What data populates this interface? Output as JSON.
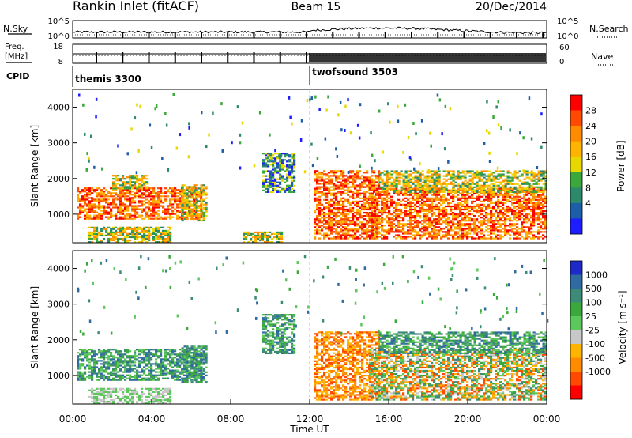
{
  "header": {
    "station": "Rankin Inlet (fitACF)",
    "beam": "Beam 15",
    "date": "20/Dec/2014"
  },
  "strips": {
    "nsky_label": "N.Sky",
    "nsearch_label": "N.Search",
    "nsky_ticks": [
      "10^5",
      "10^0"
    ],
    "nsearch_ticks": [
      "10^5",
      "10^0"
    ],
    "freq_label_line1": "Freq.",
    "freq_label_line2": "[MHz]",
    "freq_ticks": [
      "18",
      "8"
    ],
    "nave_label": "Nave",
    "nave_ticks": [
      "60",
      "0"
    ],
    "cpid_label": "CPID",
    "cpid_segments": [
      {
        "name": "themis 3300",
        "start_hour": 0,
        "end_hour": 12
      },
      {
        "name": "twofsound 3503",
        "start_hour": 12,
        "end_hour": 24
      }
    ]
  },
  "chart_data": [
    {
      "type": "heatmap",
      "title": "",
      "xlabel": "Time UT",
      "ylabel": "Slant Range [km]",
      "xlim": [
        0,
        24
      ],
      "ylim": [
        200,
        4500
      ],
      "x_ticks": [
        "00:00",
        "04:00",
        "08:00",
        "12:00",
        "16:00",
        "20:00",
        "00:00"
      ],
      "y_ticks": [
        "1000",
        "2000",
        "3000",
        "4000"
      ],
      "colorbar": {
        "label": "Power [dB]",
        "ticks": [
          "28",
          "24",
          "20",
          "16",
          "12",
          "8",
          "4"
        ],
        "colors": [
          "#ff0000",
          "#ff4a00",
          "#ff8c00",
          "#ffb400",
          "#e8d800",
          "#3aa83a",
          "#2c8a6a",
          "#1d5ea8",
          "#1d1dff"
        ]
      },
      "regions": [
        {
          "t0": 0.2,
          "t1": 6.5,
          "r0": 850,
          "r1": 1750,
          "level": "high"
        },
        {
          "t0": 0.8,
          "t1": 5.0,
          "r0": 200,
          "r1": 650,
          "level": "mid"
        },
        {
          "t0": 2.0,
          "t1": 3.8,
          "r0": 1700,
          "r1": 2100,
          "level": "mid"
        },
        {
          "t0": 5.5,
          "t1": 6.8,
          "r0": 800,
          "r1": 1800,
          "level": "mid"
        },
        {
          "t0": 8.6,
          "t1": 10.6,
          "r0": 200,
          "r1": 500,
          "level": "mid"
        },
        {
          "t0": 9.6,
          "t1": 11.2,
          "r0": 1600,
          "r1": 2700,
          "level": "low"
        },
        {
          "t0": 12.2,
          "t1": 15.5,
          "r0": 300,
          "r1": 2200,
          "level": "high"
        },
        {
          "t0": 15.0,
          "t1": 24.0,
          "r0": 300,
          "r1": 1700,
          "level": "high"
        },
        {
          "t0": 15.5,
          "t1": 24.0,
          "r0": 1600,
          "r1": 2200,
          "level": "mid"
        }
      ]
    },
    {
      "type": "heatmap",
      "title": "",
      "xlabel": "Time UT",
      "ylabel": "Slant Range [km]",
      "xlim": [
        0,
        24
      ],
      "ylim": [
        200,
        4500
      ],
      "x_ticks": [
        "00:00",
        "04:00",
        "08:00",
        "12:00",
        "16:00",
        "20:00",
        "00:00"
      ],
      "y_ticks": [
        "1000",
        "2000",
        "3000",
        "4000"
      ],
      "colorbar": {
        "label": "Velocity [m s⁻¹]",
        "ticks": [
          "1000",
          "500",
          "100",
          "25",
          "-25",
          "-100",
          "-500",
          "-1000"
        ],
        "colors": [
          "#1d2ac8",
          "#2f6aa0",
          "#3c8a78",
          "#3aa83a",
          "#5cc85c",
          "#c8c8c8",
          "#ffb400",
          "#ff8c00",
          "#ff4a00",
          "#ff0000"
        ]
      },
      "regions": [
        {
          "t0": 0.2,
          "t1": 6.5,
          "r0": 850,
          "r1": 1750,
          "level": "positive"
        },
        {
          "t0": 0.8,
          "t1": 5.0,
          "r0": 200,
          "r1": 650,
          "level": "neutral"
        },
        {
          "t0": 5.5,
          "t1": 6.8,
          "r0": 800,
          "r1": 1800,
          "level": "positive"
        },
        {
          "t0": 9.6,
          "t1": 11.2,
          "r0": 1600,
          "r1": 2700,
          "level": "positive"
        },
        {
          "t0": 12.2,
          "t1": 15.5,
          "r0": 300,
          "r1": 2200,
          "level": "negative"
        },
        {
          "t0": 15.0,
          "t1": 24.0,
          "r0": 300,
          "r1": 1700,
          "level": "mixed"
        },
        {
          "t0": 15.5,
          "t1": 24.0,
          "r0": 1600,
          "r1": 2200,
          "level": "positive"
        }
      ]
    }
  ]
}
